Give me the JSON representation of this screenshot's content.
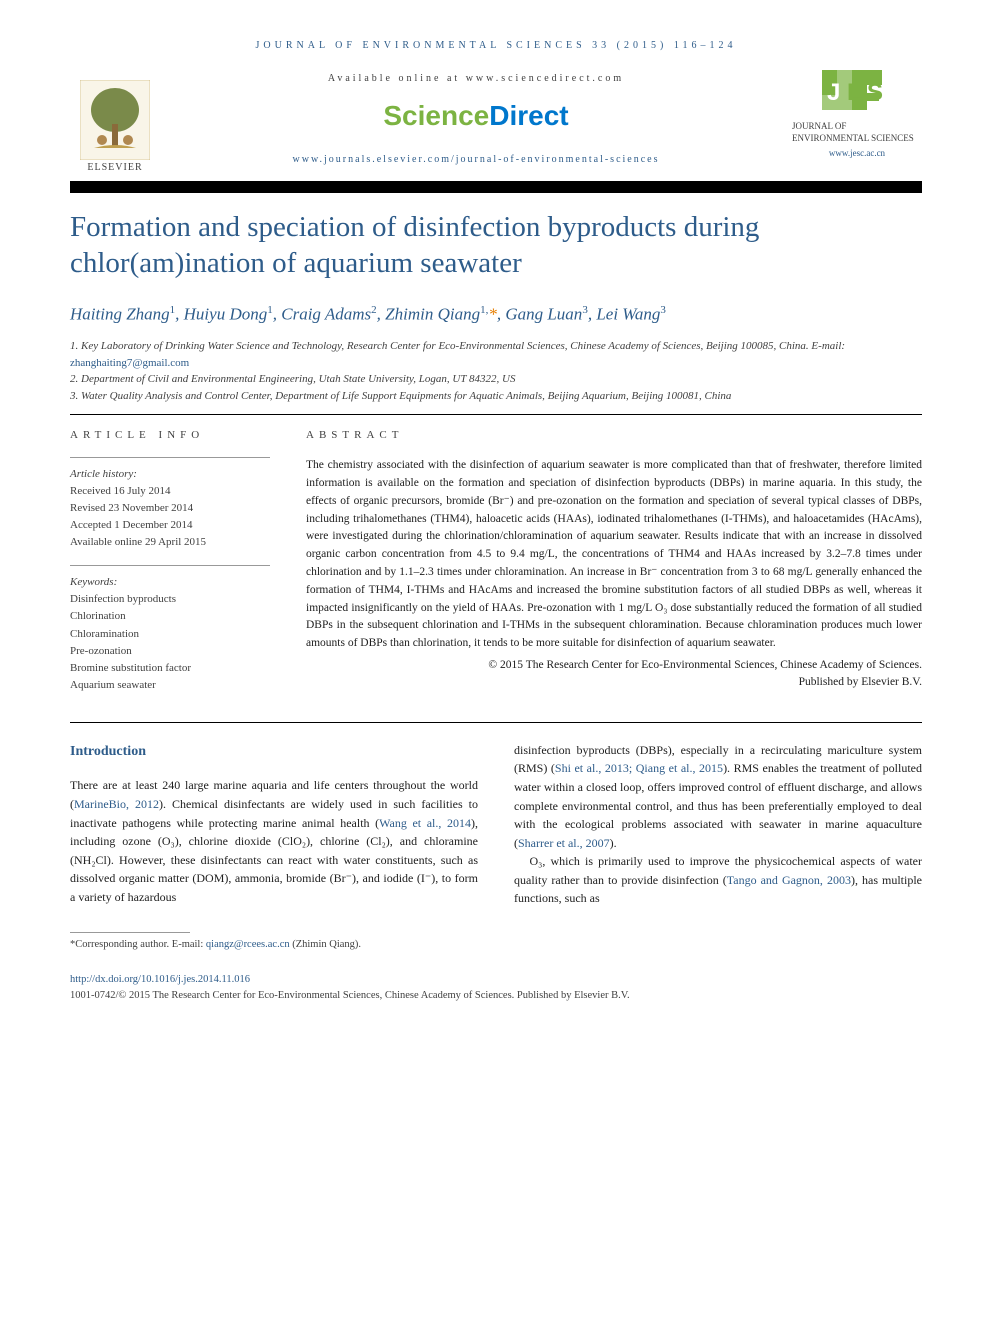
{
  "journal_header": "JOURNAL OF ENVIRONMENTAL SCIENCES 33 (2015) 116–124",
  "available_online": "Available online at www.sciencedirect.com",
  "sd_logo": {
    "left": "Science",
    "right": "Direct"
  },
  "journal_url": "www.journals.elsevier.com/journal-of-environmental-sciences",
  "elsevier_label": "ELSEVIER",
  "jes_name": "JOURNAL OF ENVIRONMENTAL SCIENCES",
  "jes_url": "www.jesc.ac.cn",
  "title": "Formation and speciation of disinfection byproducts during chlor(am)ination of aquarium seawater",
  "authors_html": "Haiting Zhang<sup>1</sup>, Huiyu Dong<sup>1</sup>, Craig Adams<sup>2</sup>, Zhimin Qiang<sup>1,</sup><span class='ast'>*</span>, Gang Luan<sup>3</sup>, Lei Wang<sup>3</sup>",
  "affiliations": [
    "1. Key Laboratory of Drinking Water Science and Technology, Research Center for Eco-Environmental Sciences, Chinese Academy of Sciences, Beijing 100085, China. E-mail: ",
    "2. Department of Civil and Environmental Engineering, Utah State University, Logan, UT 84322, US",
    "3. Water Quality Analysis and Control Center, Department of Life Support Equipments for Aquatic Animals, Beijing Aquarium, Beijing 100081, China"
  ],
  "affil_email": "zhanghaiting7@gmail.com",
  "article_info_label": "ARTICLE INFO",
  "abstract_label": "ABSTRACT",
  "history_label": "Article history:",
  "history": [
    "Received 16 July 2014",
    "Revised 23 November 2014",
    "Accepted 1 December 2014",
    "Available online 29 April 2015"
  ],
  "keywords_label": "Keywords:",
  "keywords": [
    "Disinfection byproducts",
    "Chlorination",
    "Chloramination",
    "Pre-ozonation",
    "Bromine substitution factor",
    "Aquarium seawater"
  ],
  "abstract": "The chemistry associated with the disinfection of aquarium seawater is more complicated than that of freshwater, therefore limited information is available on the formation and speciation of disinfection byproducts (DBPs) in marine aquaria. In this study, the effects of organic precursors, bromide (Br⁻) and pre-ozonation on the formation and speciation of several typical classes of DBPs, including trihalomethanes (THM4), haloacetic acids (HAAs), iodinated trihalomethanes (I-THMs), and haloacetamides (HAcAms), were investigated during the chlorination/chloramination of aquarium seawater. Results indicate that with an increase in dissolved organic carbon concentration from 4.5 to 9.4 mg/L, the concentrations of THM4 and HAAs increased by 3.2–7.8 times under chlorination and by 1.1–2.3 times under chloramination. An increase in Br⁻ concentration from 3 to 68 mg/L generally enhanced the formation of THM4, I-THMs and HAcAms and increased the bromine substitution factors of all studied DBPs as well, whereas it impacted insignificantly on the yield of HAAs. Pre-ozonation with 1 mg/L O₃ dose substantially reduced the formation of all studied DBPs in the subsequent chlorination and I-THMs in the subsequent chloramination. Because chloramination produces much lower amounts of DBPs than chlorination, it tends to be more suitable for disinfection of aquarium seawater.",
  "copyright1": "© 2015 The Research Center for Eco-Environmental Sciences, Chinese Academy of Sciences.",
  "copyright2": "Published by Elsevier B.V.",
  "intro_heading": "Introduction",
  "intro_left": "There are at least 240 large marine aquaria and life centers throughout the world (<a href='#' data-interactable='true' data-name='ref-link'>MarineBio, 2012</a>). Chemical disinfectants are widely used in such facilities to inactivate pathogens while protecting marine animal health (<a href='#' data-interactable='true' data-name='ref-link'>Wang et al., 2014</a>), including ozone (O₃), chlorine dioxide (ClO₂), chlorine (Cl₂), and chloramine (NH₂Cl). However, these disinfectants can react with water constituents, such as dissolved organic matter (DOM), ammonia, bromide (Br⁻), and iodide (I⁻), to form a variety of hazardous",
  "intro_right": "disinfection byproducts (DBPs), especially in a recirculating mariculture system (RMS) (<a href='#' data-interactable='true' data-name='ref-link'>Shi et al., 2013; Qiang et al., 2015</a>). RMS enables the treatment of polluted water within a closed loop, offers improved control of effluent discharge, and allows complete environmental control, and thus has been preferentially employed to deal with the ecological problems associated with seawater in marine aquaculture (<a href='#' data-interactable='true' data-name='ref-link'>Sharrer et al., 2007</a>).<br>&nbsp;&nbsp;&nbsp;O₃, which is primarily used to improve the physicochemical aspects of water quality rather than to provide disinfection (<a href='#' data-interactable='true' data-name='ref-link'>Tango and Gagnon, 2003</a>), has multiple functions, such as",
  "corr_footnote": "*Corresponding author. E-mail: ",
  "corr_email": "qiangz@rcees.ac.cn",
  "corr_name": " (Zhimin Qiang).",
  "doi": "http://dx.doi.org/10.1016/j.jes.2014.11.016",
  "issn_copyright": "1001-0742/© 2015 The Research Center for Eco-Environmental Sciences, Chinese Academy of Sciences. Published by Elsevier B.V.",
  "colors": {
    "link": "#2e5c8a",
    "green": "#7cb342",
    "orange": "#e67e00",
    "text": "#202020",
    "muted": "#404040"
  }
}
